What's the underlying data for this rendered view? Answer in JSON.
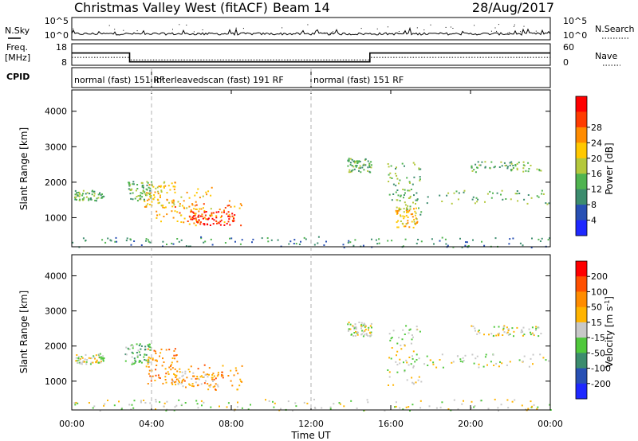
{
  "header": {
    "title": "Christmas Valley West (fitACF)",
    "beam": "Beam 14",
    "date": "28/Aug/2017"
  },
  "chart_data": [
    {
      "type": "line",
      "panel": "noise",
      "left_label": "N.Sky",
      "right_label": "N.Search",
      "left_ticks": [
        "10^5",
        "10^0"
      ],
      "right_ticks": [
        "10^5",
        "10^0"
      ]
    },
    {
      "type": "line",
      "panel": "frequency",
      "left_label_top": "Freq.",
      "left_label_bottom": "[MHz]",
      "right_label": "Nave",
      "left_ticks": [
        "18",
        "8"
      ],
      "right_ticks": [
        "60",
        "0"
      ],
      "freq_series": {
        "x_hours": [
          0,
          2.9,
          2.9,
          14.95,
          14.95,
          24
        ],
        "mhz": [
          13.7,
          13.7,
          9.6,
          9.6,
          13.7,
          13.7
        ]
      },
      "nave_series": {
        "x_hours": [
          0,
          2.9,
          2.9,
          14.95,
          14.95,
          24
        ],
        "value": [
          22,
          22,
          15,
          15,
          22,
          22
        ]
      }
    },
    {
      "type": "table",
      "panel": "cpid",
      "label": "CPID",
      "segments": [
        {
          "start_hour": 0,
          "text": "normal (fast)  151  RF"
        },
        {
          "start_hour": 4.0,
          "text": "interleavedscan (fast)  191  RF"
        },
        {
          "start_hour": 12.0,
          "text": "normal (fast)  151  RF"
        }
      ]
    },
    {
      "type": "heatmap",
      "panel": "power",
      "ylabel": "Slant Range [km]",
      "ylim": [
        180,
        4600
      ],
      "yticks": [
        1000,
        2000,
        3000,
        4000
      ],
      "colorbar_label": "Power [dB]",
      "colorbar_ticks": [
        4,
        8,
        12,
        16,
        20,
        24,
        28
      ],
      "colorbar_colors": [
        "#1e28ff",
        "#2850b4",
        "#3c8c6e",
        "#50b450",
        "#b4c83c",
        "#ffc800",
        "#ff8c00",
        "#ff3c00",
        "#ff0000"
      ],
      "regions": [
        {
          "x0": 0.1,
          "x1": 1.6,
          "y0": 1500,
          "y1": 1800,
          "level": 3
        },
        {
          "x0": 2.8,
          "x1": 4.0,
          "y0": 1500,
          "y1": 2050,
          "level": 3
        },
        {
          "x0": 3.6,
          "x1": 5.2,
          "y0": 1300,
          "y1": 2050,
          "level": 5
        },
        {
          "x0": 4.0,
          "x1": 7.0,
          "y0": 900,
          "y1": 1900,
          "level": 5
        },
        {
          "x0": 5.0,
          "x1": 8.5,
          "y0": 800,
          "y1": 1500,
          "level": 6
        },
        {
          "x0": 6.0,
          "x1": 8.2,
          "y0": 800,
          "y1": 1200,
          "level": 8
        },
        {
          "x0": 0.0,
          "x1": 24.0,
          "y0": 180,
          "y1": 480,
          "level": 2
        },
        {
          "x0": 16.0,
          "x1": 23.9,
          "y0": 1400,
          "y1": 1800,
          "level": 3
        },
        {
          "x0": 16.2,
          "x1": 17.3,
          "y0": 700,
          "y1": 1300,
          "level": 5
        },
        {
          "x0": 15.8,
          "x1": 17.5,
          "y0": 1100,
          "y1": 2600,
          "level": 3
        },
        {
          "x0": 20.0,
          "x1": 23.5,
          "y0": 2300,
          "y1": 2600,
          "level": 3
        },
        {
          "x0": 13.8,
          "x1": 15.0,
          "y0": 2300,
          "y1": 2700,
          "level": 3
        }
      ]
    },
    {
      "type": "heatmap",
      "panel": "velocity",
      "ylabel": "Slant Range [km]",
      "ylim": [
        180,
        4600
      ],
      "yticks": [
        1000,
        2000,
        3000,
        4000
      ],
      "xticks": [
        "00:00",
        "04:00",
        "08:00",
        "12:00",
        "16:00",
        "20:00",
        "00:00"
      ],
      "xlabel": "Time UT",
      "colorbar_label": "Velocity [m s",
      "colorbar_label_sup": "-1",
      "colorbar_label_tail": "]",
      "colorbar_ticks": [
        "200",
        "100",
        "50",
        "15",
        "-15",
        "-50",
        "-100",
        "-200"
      ],
      "colorbar_colors": [
        "#1e28ff",
        "#2850b4",
        "#3c8c6e",
        "#50c83c",
        "#c8c8c8",
        "#ffb400",
        "#ff8c00",
        "#ff5000",
        "#ff0000"
      ],
      "regions": [
        {
          "x0": 0.1,
          "x1": 1.6,
          "y0": 1500,
          "y1": 1800,
          "level": 4
        },
        {
          "x0": 2.6,
          "x1": 3.9,
          "y0": 1500,
          "y1": 2100,
          "level": 3
        },
        {
          "x0": 3.7,
          "x1": 5.3,
          "y0": 900,
          "y1": 1950,
          "level": 6
        },
        {
          "x0": 4.5,
          "x1": 8.6,
          "y0": 750,
          "y1": 1500,
          "level": 6
        },
        {
          "x0": 5.0,
          "x1": 7.5,
          "y0": 850,
          "y1": 1300,
          "level": 5
        },
        {
          "x0": 0.0,
          "x1": 24.0,
          "y0": 180,
          "y1": 500,
          "level": 4
        },
        {
          "x0": 16.0,
          "x1": 23.9,
          "y0": 1400,
          "y1": 1800,
          "level": 4
        },
        {
          "x0": 15.8,
          "x1": 17.5,
          "y0": 900,
          "y1": 2600,
          "level": 4
        },
        {
          "x0": 20.0,
          "x1": 23.5,
          "y0": 2300,
          "y1": 2600,
          "level": 4
        },
        {
          "x0": 13.8,
          "x1": 15.0,
          "y0": 2300,
          "y1": 2700,
          "level": 4
        }
      ]
    }
  ]
}
